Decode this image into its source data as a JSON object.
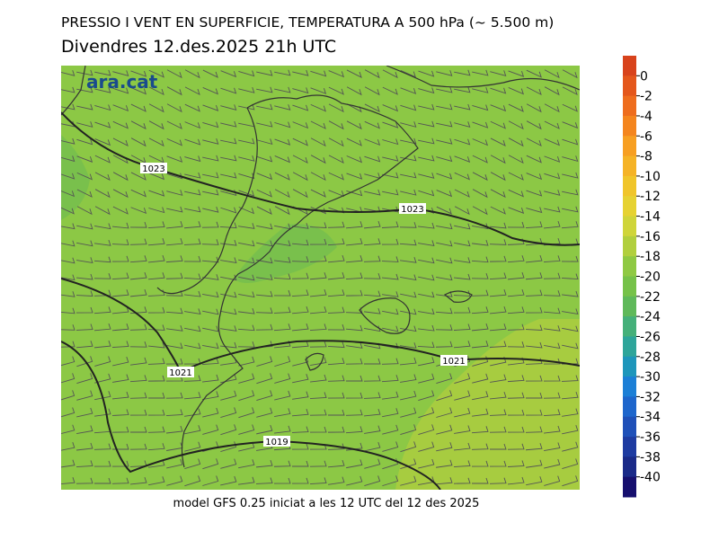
{
  "header": {
    "title": "PRESSIO I VENT EN SUPERFICIE, TEMPERATURA A 500 hPa (~ 5.500 m)",
    "subtitle": "Divendres  12.des.2025 21h UTC"
  },
  "map": {
    "logo": "ara.cat",
    "isobar_labels": [
      1023,
      1023,
      1021,
      1021,
      1019
    ]
  },
  "colorbar": {
    "ticks": [
      0,
      -2,
      -4,
      -6,
      -8,
      -10,
      -12,
      -14,
      -16,
      -18,
      -20,
      -22,
      -24,
      -26,
      -28,
      -30,
      -32,
      -34,
      -36,
      -38,
      -40
    ],
    "colors": [
      "#d8431c",
      "#e4571c",
      "#ee6d1e",
      "#f4851e",
      "#f79f22",
      "#f5b326",
      "#f0c52a",
      "#e6d232",
      "#cfd53a",
      "#b1cf3e",
      "#8fc943",
      "#76c249",
      "#5fb95a",
      "#45b07a",
      "#2ea59a",
      "#1e96bb",
      "#1c7fd6",
      "#1e66cc",
      "#1f50b8",
      "#1e3ba1",
      "#1a2a88",
      "#160f6e"
    ]
  },
  "footer": "model GFS 0.25 iniciat a les 12 UTC del 12 des 2025"
}
